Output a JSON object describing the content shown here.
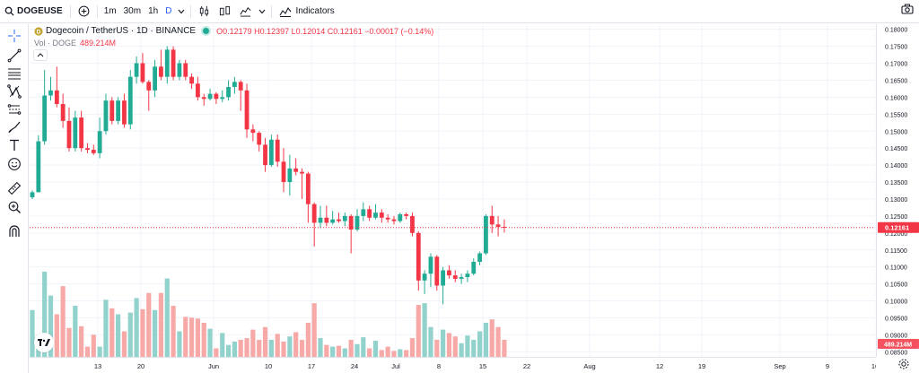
{
  "toolbar": {
    "symbol": "DOGEUSE",
    "timeframes": [
      "1m",
      "30m",
      "1h",
      "D"
    ],
    "indicators_label": "Indicators"
  },
  "legend": {
    "title": "Dogecoin / TetherUS · 1D · BINANCE",
    "ohlc": "O0.12179 H0.12397 L0.12014 C0.12161 −0.00017 (−0.14%)",
    "vol_label": "Vol · DOGE",
    "vol_value": "489.214M"
  },
  "colors": {
    "up": "#22ab94",
    "down": "#f23645",
    "vol_up": "#92d2cc",
    "vol_down": "#f7a9a7",
    "accent": "#2962ff"
  },
  "price_axis": {
    "ticks": [
      "0.18000",
      "0.17500",
      "0.17000",
      "0.16500",
      "0.16000",
      "0.15500",
      "0.15000",
      "0.14500",
      "0.14000",
      "0.13500",
      "0.13000",
      "0.12500",
      "0.12000",
      "0.11500",
      "0.11000",
      "0.10500",
      "0.10000",
      "0.09500",
      "0.09000",
      "0.08500"
    ],
    "last_price": "0.12161",
    "last_volume": "489.214M"
  },
  "time_axis": {
    "labels": [
      "13",
      "20",
      "Jun",
      "10",
      "17",
      "24",
      "Jul",
      "8",
      "15",
      "22",
      "Aug",
      "12",
      "19",
      "Sep",
      "9",
      "16"
    ]
  },
  "chart_data": {
    "type": "candlestick",
    "title": "Dogecoin / TetherUS · 1D · BINANCE",
    "ylim": [
      0.0835,
      0.1815
    ],
    "candles": [
      {
        "o": 0.1305,
        "h": 0.1325,
        "l": 0.13,
        "c": 0.132
      },
      {
        "o": 0.132,
        "h": 0.1488,
        "l": 0.132,
        "c": 0.147
      },
      {
        "o": 0.147,
        "h": 0.168,
        "l": 0.146,
        "c": 0.1605
      },
      {
        "o": 0.1605,
        "h": 0.166,
        "l": 0.159,
        "c": 0.162
      },
      {
        "o": 0.162,
        "h": 0.169,
        "l": 0.157,
        "c": 0.158
      },
      {
        "o": 0.158,
        "h": 0.161,
        "l": 0.151,
        "c": 0.153
      },
      {
        "o": 0.153,
        "h": 0.157,
        "l": 0.144,
        "c": 0.145
      },
      {
        "o": 0.145,
        "h": 0.156,
        "l": 0.144,
        "c": 0.154
      },
      {
        "o": 0.154,
        "h": 0.156,
        "l": 0.144,
        "c": 0.145
      },
      {
        "o": 0.145,
        "h": 0.1465,
        "l": 0.1435,
        "c": 0.1445
      },
      {
        "o": 0.1445,
        "h": 0.146,
        "l": 0.143,
        "c": 0.1435
      },
      {
        "o": 0.1435,
        "h": 0.154,
        "l": 0.142,
        "c": 0.15
      },
      {
        "o": 0.15,
        "h": 0.161,
        "l": 0.149,
        "c": 0.159
      },
      {
        "o": 0.159,
        "h": 0.16,
        "l": 0.152,
        "c": 0.153
      },
      {
        "o": 0.153,
        "h": 0.16,
        "l": 0.152,
        "c": 0.159
      },
      {
        "o": 0.159,
        "h": 0.161,
        "l": 0.151,
        "c": 0.152
      },
      {
        "o": 0.152,
        "h": 0.168,
        "l": 0.1505,
        "c": 0.166
      },
      {
        "o": 0.166,
        "h": 0.172,
        "l": 0.164,
        "c": 0.17
      },
      {
        "o": 0.17,
        "h": 0.173,
        "l": 0.164,
        "c": 0.1645
      },
      {
        "o": 0.1645,
        "h": 0.165,
        "l": 0.156,
        "c": 0.162
      },
      {
        "o": 0.162,
        "h": 0.171,
        "l": 0.16,
        "c": 0.169
      },
      {
        "o": 0.169,
        "h": 0.174,
        "l": 0.165,
        "c": 0.166
      },
      {
        "o": 0.166,
        "h": 0.175,
        "l": 0.164,
        "c": 0.174
      },
      {
        "o": 0.174,
        "h": 0.175,
        "l": 0.165,
        "c": 0.166
      },
      {
        "o": 0.166,
        "h": 0.171,
        "l": 0.165,
        "c": 0.17
      },
      {
        "o": 0.17,
        "h": 0.171,
        "l": 0.165,
        "c": 0.166
      },
      {
        "o": 0.166,
        "h": 0.167,
        "l": 0.1625,
        "c": 0.164
      },
      {
        "o": 0.164,
        "h": 0.166,
        "l": 0.159,
        "c": 0.16
      },
      {
        "o": 0.16,
        "h": 0.161,
        "l": 0.1575,
        "c": 0.1595
      },
      {
        "o": 0.1595,
        "h": 0.1625,
        "l": 0.159,
        "c": 0.161
      },
      {
        "o": 0.161,
        "h": 0.1615,
        "l": 0.158,
        "c": 0.1595
      },
      {
        "o": 0.1595,
        "h": 0.162,
        "l": 0.1585,
        "c": 0.16
      },
      {
        "o": 0.16,
        "h": 0.165,
        "l": 0.159,
        "c": 0.163
      },
      {
        "o": 0.163,
        "h": 0.166,
        "l": 0.161,
        "c": 0.1645
      },
      {
        "o": 0.1645,
        "h": 0.165,
        "l": 0.156,
        "c": 0.162
      },
      {
        "o": 0.162,
        "h": 0.164,
        "l": 0.148,
        "c": 0.1505
      },
      {
        "o": 0.1505,
        "h": 0.152,
        "l": 0.147,
        "c": 0.1495
      },
      {
        "o": 0.1495,
        "h": 0.15,
        "l": 0.144,
        "c": 0.146
      },
      {
        "o": 0.146,
        "h": 0.148,
        "l": 0.138,
        "c": 0.14
      },
      {
        "o": 0.14,
        "h": 0.149,
        "l": 0.1395,
        "c": 0.1475
      },
      {
        "o": 0.1475,
        "h": 0.149,
        "l": 0.1395,
        "c": 0.141
      },
      {
        "o": 0.141,
        "h": 0.145,
        "l": 0.132,
        "c": 0.135
      },
      {
        "o": 0.135,
        "h": 0.143,
        "l": 0.131,
        "c": 0.139
      },
      {
        "o": 0.139,
        "h": 0.142,
        "l": 0.137,
        "c": 0.138
      },
      {
        "o": 0.138,
        "h": 0.139,
        "l": 0.13,
        "c": 0.1375
      },
      {
        "o": 0.1375,
        "h": 0.138,
        "l": 0.123,
        "c": 0.1285
      },
      {
        "o": 0.1285,
        "h": 0.129,
        "l": 0.116,
        "c": 0.123
      },
      {
        "o": 0.123,
        "h": 0.128,
        "l": 0.1215,
        "c": 0.1245
      },
      {
        "o": 0.1245,
        "h": 0.128,
        "l": 0.122,
        "c": 0.123
      },
      {
        "o": 0.123,
        "h": 0.1265,
        "l": 0.1225,
        "c": 0.124
      },
      {
        "o": 0.124,
        "h": 0.126,
        "l": 0.123,
        "c": 0.1235
      },
      {
        "o": 0.1235,
        "h": 0.126,
        "l": 0.122,
        "c": 0.125
      },
      {
        "o": 0.125,
        "h": 0.1255,
        "l": 0.114,
        "c": 0.121
      },
      {
        "o": 0.121,
        "h": 0.127,
        "l": 0.1205,
        "c": 0.125
      },
      {
        "o": 0.125,
        "h": 0.129,
        "l": 0.1235,
        "c": 0.127
      },
      {
        "o": 0.127,
        "h": 0.128,
        "l": 0.1235,
        "c": 0.1245
      },
      {
        "o": 0.1245,
        "h": 0.1285,
        "l": 0.124,
        "c": 0.126
      },
      {
        "o": 0.126,
        "h": 0.127,
        "l": 0.123,
        "c": 0.1245
      },
      {
        "o": 0.1245,
        "h": 0.1255,
        "l": 0.123,
        "c": 0.124
      },
      {
        "o": 0.124,
        "h": 0.125,
        "l": 0.1225,
        "c": 0.1235
      },
      {
        "o": 0.1235,
        "h": 0.126,
        "l": 0.123,
        "c": 0.1255
      },
      {
        "o": 0.1255,
        "h": 0.126,
        "l": 0.124,
        "c": 0.125
      },
      {
        "o": 0.125,
        "h": 0.126,
        "l": 0.119,
        "c": 0.12
      },
      {
        "o": 0.12,
        "h": 0.1205,
        "l": 0.103,
        "c": 0.106
      },
      {
        "o": 0.106,
        "h": 0.109,
        "l": 0.102,
        "c": 0.108
      },
      {
        "o": 0.108,
        "h": 0.114,
        "l": 0.104,
        "c": 0.113
      },
      {
        "o": 0.113,
        "h": 0.1135,
        "l": 0.103,
        "c": 0.1045
      },
      {
        "o": 0.1045,
        "h": 0.11,
        "l": 0.099,
        "c": 0.109
      },
      {
        "o": 0.109,
        "h": 0.1105,
        "l": 0.1065,
        "c": 0.1075
      },
      {
        "o": 0.1075,
        "h": 0.109,
        "l": 0.1055,
        "c": 0.1065
      },
      {
        "o": 0.1065,
        "h": 0.108,
        "l": 0.105,
        "c": 0.107
      },
      {
        "o": 0.107,
        "h": 0.109,
        "l": 0.1055,
        "c": 0.108
      },
      {
        "o": 0.108,
        "h": 0.1125,
        "l": 0.1075,
        "c": 0.1115
      },
      {
        "o": 0.1115,
        "h": 0.1145,
        "l": 0.1105,
        "c": 0.114
      },
      {
        "o": 0.114,
        "h": 0.1255,
        "l": 0.1135,
        "c": 0.125
      },
      {
        "o": 0.125,
        "h": 0.128,
        "l": 0.12,
        "c": 0.1225
      },
      {
        "o": 0.1225,
        "h": 0.125,
        "l": 0.119,
        "c": 0.1218
      },
      {
        "o": 0.1218,
        "h": 0.124,
        "l": 0.1201,
        "c": 0.1216
      }
    ],
    "volume_relative": [
      0.55,
      0.18,
      1.0,
      0.72,
      0.5,
      0.83,
      0.34,
      0.6,
      0.36,
      0.12,
      0.26,
      0.12,
      0.67,
      0.57,
      0.5,
      0.3,
      0.52,
      0.69,
      0.56,
      0.75,
      0.55,
      0.75,
      0.92,
      0.6,
      0.3,
      0.47,
      0.46,
      0.45,
      0.4,
      0.33,
      0.1,
      0.28,
      0.14,
      0.18,
      0.2,
      0.22,
      0.32,
      0.2,
      0.35,
      0.2,
      0.27,
      0.18,
      0.24,
      0.29,
      0.2,
      0.4,
      0.63,
      0.22,
      0.14,
      0.12,
      0.13,
      0.1,
      0.2,
      0.15,
      0.23,
      0.1,
      0.19,
      0.08,
      0.12,
      0.07,
      0.09,
      0.08,
      0.22,
      0.61,
      0.63,
      0.35,
      0.2,
      0.32,
      0.28,
      0.24,
      0.16,
      0.25,
      0.2,
      0.3,
      0.4,
      0.44,
      0.35,
      0.2
    ],
    "time_labels": [
      "13",
      "20",
      "Jun",
      "10",
      "17",
      "24",
      "Jul",
      "8",
      "15",
      "22",
      "Aug",
      "12",
      "19",
      "Sep",
      "9",
      "16"
    ]
  }
}
